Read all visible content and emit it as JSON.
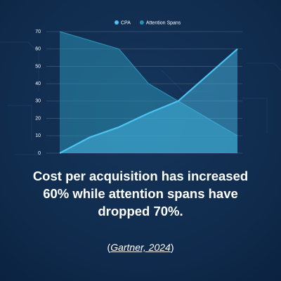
{
  "chart_data": {
    "type": "area",
    "categories": [
      null,
      null,
      null,
      null,
      null,
      null,
      null
    ],
    "series": [
      {
        "name": "CPA",
        "color": "#4cc3f0",
        "values": [
          0,
          9,
          15,
          23,
          30,
          45,
          60
        ]
      },
      {
        "name": "Attention Spans",
        "color": "#2a8fb3",
        "values": [
          70,
          65,
          60,
          40,
          30,
          20,
          10
        ]
      }
    ],
    "ylim": [
      0,
      70
    ],
    "yticks": [
      0,
      10,
      20,
      30,
      40,
      50,
      60,
      70
    ],
    "grid": true,
    "legend": "top"
  },
  "headline": "Cost per acquisition has increased 60% while attention spans have dropped 70%.",
  "source_parts": [
    "(",
    "Gartner, 2024",
    ")"
  ]
}
